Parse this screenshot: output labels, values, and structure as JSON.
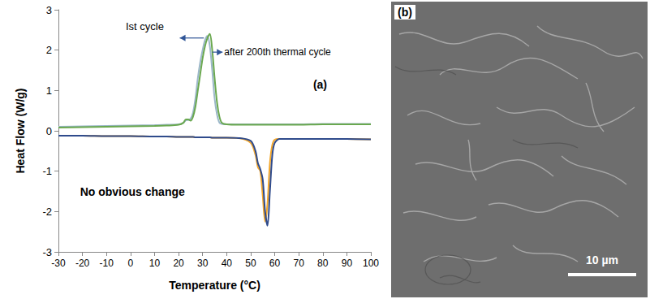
{
  "chart_data": {
    "type": "line",
    "xlabel": "Temperature (°C)",
    "ylabel": "Heat Flow (W/g)",
    "x": [
      -30,
      -20,
      -10,
      0,
      10,
      15,
      20,
      22,
      23,
      24,
      25,
      26,
      27,
      28,
      29,
      30,
      31,
      32,
      33,
      34,
      35,
      36,
      37,
      38,
      40,
      45,
      50,
      52,
      53,
      54,
      55,
      56,
      57,
      58,
      59,
      60,
      62,
      65,
      70,
      80,
      90,
      100
    ],
    "series": [
      {
        "color": "#9bb7c9",
        "values": [
          0.1,
          0.11,
          0.12,
          0.13,
          0.14,
          0.15,
          0.16,
          0.2,
          0.26,
          0.27,
          0.3,
          0.45,
          0.8,
          1.3,
          1.7,
          2.0,
          2.25,
          2.35,
          2.1,
          1.5,
          0.8,
          0.4,
          0.2,
          0.17,
          0.16,
          0.16,
          0.16,
          0.16,
          0.16,
          0.16,
          0.16,
          0.16,
          0.16,
          0.16,
          0.16,
          0.16,
          0.16,
          0.16,
          0.16,
          0.17,
          0.17,
          0.17
        ]
      },
      {
        "color": "#6aa84f",
        "values": [
          0.08,
          0.09,
          0.1,
          0.11,
          0.12,
          0.13,
          0.15,
          0.2,
          0.28,
          0.28,
          0.25,
          0.35,
          0.6,
          1.0,
          1.4,
          1.8,
          2.1,
          2.3,
          2.4,
          2.0,
          1.3,
          0.7,
          0.35,
          0.2,
          0.16,
          0.15,
          0.15,
          0.15,
          0.15,
          0.15,
          0.15,
          0.15,
          0.15,
          0.15,
          0.15,
          0.15,
          0.15,
          0.15,
          0.15,
          0.16,
          0.16,
          0.16
        ]
      },
      {
        "color": "#f4a72a",
        "values": [
          -0.12,
          -0.12,
          -0.13,
          -0.13,
          -0.14,
          -0.14,
          -0.15,
          -0.15,
          -0.15,
          -0.15,
          -0.15,
          -0.15,
          -0.16,
          -0.16,
          -0.16,
          -0.16,
          -0.16,
          -0.16,
          -0.16,
          -0.17,
          -0.17,
          -0.17,
          -0.17,
          -0.17,
          -0.17,
          -0.18,
          -0.3,
          -0.6,
          -0.9,
          -1.0,
          -1.6,
          -2.25,
          -1.8,
          -0.8,
          -0.35,
          -0.22,
          -0.2,
          -0.2,
          -0.2,
          -0.2,
          -0.2,
          -0.21
        ]
      },
      {
        "color": "#2f4b8c",
        "values": [
          -0.12,
          -0.12,
          -0.13,
          -0.13,
          -0.14,
          -0.14,
          -0.15,
          -0.15,
          -0.15,
          -0.15,
          -0.15,
          -0.15,
          -0.16,
          -0.16,
          -0.16,
          -0.16,
          -0.16,
          -0.16,
          -0.16,
          -0.17,
          -0.17,
          -0.17,
          -0.17,
          -0.17,
          -0.17,
          -0.18,
          -0.25,
          -0.5,
          -0.8,
          -0.95,
          -1.2,
          -2.0,
          -2.35,
          -1.5,
          -0.6,
          -0.3,
          -0.2,
          -0.2,
          -0.2,
          -0.2,
          -0.2,
          -0.21
        ]
      }
    ],
    "xlim": [
      -30,
      100
    ],
    "ylim": [
      -3,
      3
    ],
    "xticks": [
      -30,
      -20,
      -10,
      0,
      10,
      20,
      30,
      40,
      50,
      60,
      70,
      80,
      90,
      100
    ],
    "yticks": [
      -3,
      -2,
      -1,
      0,
      1,
      2,
      3
    ],
    "grid": false,
    "annotations": [
      "(a)",
      "Ist cycle",
      "after 200th thermal cycle",
      "No obvious change"
    ]
  },
  "image_panel": {
    "label": "(b)",
    "scale_bar": "10 µm"
  }
}
